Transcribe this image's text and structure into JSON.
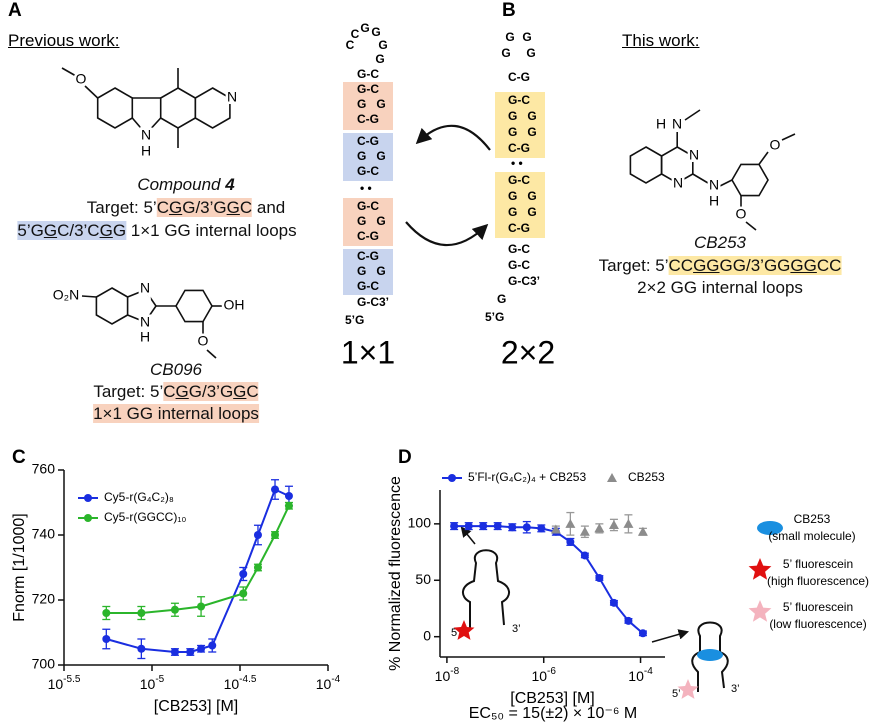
{
  "panel_a": {
    "label": "A",
    "heading": "Previous work:",
    "compound_4": {
      "atoms": [
        "O",
        "N",
        "H",
        "N"
      ],
      "name": "Compound ",
      "number": "4",
      "target_lines": [
        [
          "Target: 5’",
          "C",
          "G",
          "G/3’G",
          "G",
          "C",
          " and"
        ],
        [
          "5’",
          "G",
          "G",
          "C/3’C",
          "G",
          "G",
          " 1×1 GG internal loops"
        ]
      ]
    },
    "cb096": {
      "atoms": [
        "O₂N",
        "N",
        "N",
        "H",
        "OH",
        "O"
      ],
      "name": "CB096",
      "target_lines": [
        [
          "Target: 5’",
          "C",
          "G",
          "G/3’G",
          "G",
          "C"
        ],
        [
          "1×1 GG internal loops"
        ]
      ]
    }
  },
  "hairpin_1x1": {
    "loop": [
      "C",
      "C",
      "G",
      "G",
      "G",
      "G"
    ],
    "stem": [
      "G-C",
      "G-C",
      "G   G",
      "C-G",
      "C-G",
      "G   G",
      "G-C",
      "• •",
      "G-C",
      "G   G",
      "C-G",
      "C-G",
      "G   G",
      "G-C",
      "G-C3’",
      "5’G"
    ],
    "label": "1×1"
  },
  "hairpin_2x2": {
    "loop": [
      "G",
      "G",
      "G",
      "G"
    ],
    "stem": [
      "C-G",
      "G-C",
      "G   G",
      "G   G",
      "C-G",
      "• •",
      "G-C",
      "G   G",
      "G   G",
      "C-G",
      "G-C",
      "G-C",
      "G-C3’",
      "G",
      "5’G"
    ],
    "label": "2×2"
  },
  "panel_b": {
    "label": "B",
    "heading": "This work:",
    "cb253": {
      "atoms": [
        "H",
        "N",
        "N",
        "N",
        "N",
        "H",
        "O",
        "O"
      ],
      "name": "CB253",
      "target_lines": [
        [
          "Target: 5’",
          "CC",
          "GG",
          "GG/3’GG",
          "GG",
          "CC"
        ],
        [
          "2×2 GG internal loops"
        ]
      ]
    }
  },
  "chart_data": [
    {
      "type": "line",
      "label": "C",
      "xlabel": "[CB253] [M]",
      "ylabel": "Fnorm [1/1000]",
      "x_log": true,
      "xlim": [
        3.1623e-06,
        0.0001
      ],
      "xticks": [
        {
          "value": 3.1623e-06,
          "label": "10",
          "sup": "-5.5"
        },
        {
          "value": 1e-05,
          "label": "10",
          "sup": "-5"
        },
        {
          "value": 3.1623e-05,
          "label": "10",
          "sup": "-4.5"
        },
        {
          "value": 0.0001,
          "label": "10",
          "sup": "-4"
        }
      ],
      "ylim": [
        700,
        760
      ],
      "yticks": [
        700,
        720,
        740,
        760
      ],
      "legend": "upper left",
      "series": [
        {
          "name": "Cy5-r(G₄C₂)₈",
          "color": "#1a2ee0",
          "marker": "circle",
          "line": true,
          "x": [
            5.5e-06,
            8.7e-06,
            1.35e-05,
            1.65e-05,
            1.9e-05,
            2.2e-05,
            3.3e-05,
            4e-05,
            5e-05,
            6e-05
          ],
          "values": [
            708,
            705,
            704,
            704,
            705,
            706,
            728,
            740,
            754,
            752
          ],
          "errors": [
            3,
            3,
            1,
            1,
            1,
            2,
            2,
            3,
            3,
            3
          ]
        },
        {
          "name": "Cy5-r(GGCC)₁₀",
          "color": "#2bb52b",
          "marker": "circle",
          "line": true,
          "x": [
            5.5e-06,
            8.7e-06,
            1.35e-05,
            1.9e-05,
            3.3e-05,
            4e-05,
            5e-05,
            6e-05
          ],
          "values": [
            716,
            716,
            717,
            718,
            722,
            730,
            740,
            749
          ],
          "errors": [
            2,
            2,
            2,
            3,
            2,
            1,
            1,
            1
          ]
        }
      ]
    },
    {
      "type": "line",
      "label": "D",
      "xlabel": "[CB253] [M]",
      "ylabel": "% Normalized fluorescence",
      "x_log": true,
      "xlim": [
        7.2e-09,
        0.00032
      ],
      "xticks": [
        {
          "value": 1e-08,
          "label": "10",
          "sup": "-8"
        },
        {
          "value": 1e-06,
          "label": "10",
          "sup": "-6"
        },
        {
          "value": 0.0001,
          "label": "10",
          "sup": "-4"
        }
      ],
      "ylim": [
        -18,
        130
      ],
      "yticks": [
        0,
        50,
        100
      ],
      "legend": "top",
      "series": [
        {
          "name": "5’Fl-r(G₄C₂)₄ + CB253",
          "color": "#1a2ee0",
          "marker": "circle",
          "line": true,
          "x": [
            1.41e-08,
            2.82e-08,
            5.62e-08,
            1.12e-07,
            2.24e-07,
            4.47e-07,
            8.91e-07,
            1.78e-06,
            3.55e-06,
            7.08e-06,
            1.41e-05,
            2.82e-05,
            5.62e-05,
            0.000112
          ],
          "values": [
            98,
            98,
            98,
            98,
            97,
            97,
            96,
            93,
            84,
            72,
            52,
            30,
            14,
            3
          ],
          "errors": [
            3,
            3,
            3,
            3,
            3,
            5,
            3,
            3,
            3,
            2,
            2,
            2,
            2,
            2
          ]
        },
        {
          "name": "CB253",
          "color": "#8c8c8c",
          "marker": "triangle",
          "line": false,
          "x": [
            1.78e-06,
            3.55e-06,
            7.08e-06,
            1.41e-05,
            2.82e-05,
            5.62e-05,
            0.000112
          ],
          "values": [
            95,
            100,
            93,
            96,
            99,
            100,
            93
          ],
          "errors": [
            3,
            10,
            5,
            4,
            5,
            8,
            3
          ]
        }
      ],
      "annotation": "EC₅₀ = 15(±2) × 10⁻⁶ M",
      "key": [
        [
          "CB253",
          "(small molecule)"
        ],
        [
          "5’ fluorescein",
          "(high fluorescence)"
        ],
        [
          "5’ fluorescein",
          "(low fluorescence)"
        ]
      ],
      "cartoon_labels": [
        "5’",
        "3’",
        "5’",
        "3’"
      ]
    }
  ]
}
